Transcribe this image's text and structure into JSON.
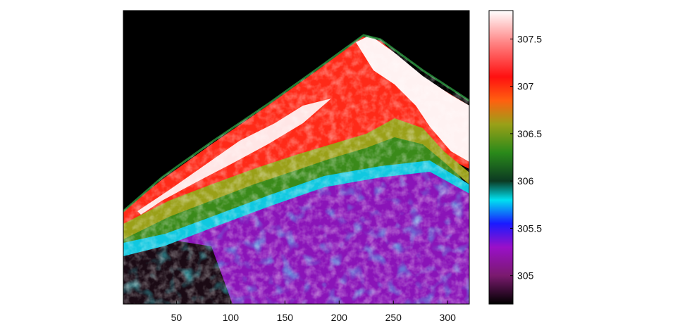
{
  "chart_data": {
    "type": "heatmap",
    "title": "",
    "xlabel": "",
    "ylabel": "",
    "xlim": [
      1,
      320
    ],
    "x_ticks": [
      50,
      100,
      150,
      200,
      250,
      300
    ],
    "y_ticks": [],
    "grid": false,
    "colorbar": {
      "placement": "right",
      "range": [
        304.7,
        307.8
      ],
      "ticks": [
        305,
        305.5,
        306,
        306.5,
        307,
        307.5
      ],
      "colormap": [
        {
          "value": 304.7,
          "color": "#000000"
        },
        {
          "value": 305.0,
          "color": "#7a1a6e"
        },
        {
          "value": 305.3,
          "color": "#9a10c8"
        },
        {
          "value": 305.55,
          "color": "#1a1aff"
        },
        {
          "value": 305.8,
          "color": "#00e0f0"
        },
        {
          "value": 306.0,
          "color": "#0c3a22"
        },
        {
          "value": 306.3,
          "color": "#2a8a1a"
        },
        {
          "value": 306.6,
          "color": "#9aa018"
        },
        {
          "value": 306.85,
          "color": "#ff6010"
        },
        {
          "value": 307.1,
          "color": "#ff1010"
        },
        {
          "value": 307.45,
          "color": "#ff8080"
        },
        {
          "value": 307.8,
          "color": "#ffffff"
        }
      ]
    },
    "background_color": "#000000",
    "field_description": "triangular peak region, apex near x=225; warm (306.9–307.8) along upper band, cooler (305–306) mottled lower region"
  }
}
